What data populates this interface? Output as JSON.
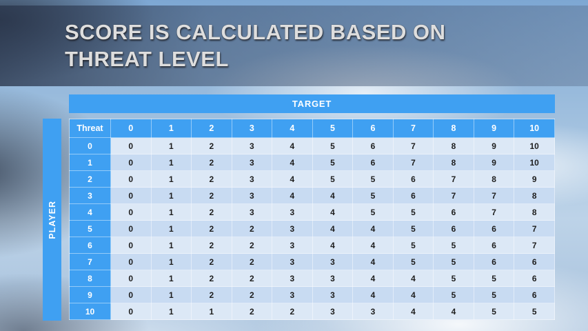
{
  "slide": {
    "title_line1": "SCORE IS CALCULATED BASED ON",
    "title_line2": "THREAT LEVEL"
  },
  "table": {
    "target_label": "TARGET",
    "player_label": "PLAYER",
    "corner_label": "Threat",
    "col_headers": [
      "0",
      "1",
      "2",
      "3",
      "4",
      "5",
      "6",
      "7",
      "8",
      "9",
      "10"
    ],
    "rows": [
      {
        "threat": "0",
        "values": [
          0,
          1,
          2,
          3,
          4,
          5,
          6,
          7,
          8,
          9,
          10
        ]
      },
      {
        "threat": "1",
        "values": [
          0,
          1,
          2,
          3,
          4,
          5,
          6,
          7,
          8,
          9,
          10
        ]
      },
      {
        "threat": "2",
        "values": [
          0,
          1,
          2,
          3,
          4,
          5,
          5,
          6,
          7,
          8,
          9
        ]
      },
      {
        "threat": "3",
        "values": [
          0,
          1,
          2,
          3,
          4,
          4,
          5,
          6,
          7,
          7,
          8
        ]
      },
      {
        "threat": "4",
        "values": [
          0,
          1,
          2,
          3,
          3,
          4,
          5,
          5,
          6,
          7,
          8
        ]
      },
      {
        "threat": "5",
        "values": [
          0,
          1,
          2,
          2,
          3,
          4,
          4,
          5,
          6,
          6,
          7
        ]
      },
      {
        "threat": "6",
        "values": [
          0,
          1,
          2,
          2,
          3,
          4,
          4,
          5,
          5,
          6,
          7
        ]
      },
      {
        "threat": "7",
        "values": [
          0,
          1,
          2,
          2,
          3,
          3,
          4,
          5,
          5,
          6,
          6
        ]
      },
      {
        "threat": "8",
        "values": [
          0,
          1,
          2,
          2,
          3,
          3,
          4,
          4,
          5,
          5,
          6
        ]
      },
      {
        "threat": "9",
        "values": [
          0,
          1,
          2,
          2,
          3,
          3,
          4,
          4,
          5,
          5,
          6
        ]
      },
      {
        "threat": "10",
        "values": [
          0,
          1,
          1,
          2,
          2,
          3,
          3,
          4,
          4,
          5,
          5
        ]
      }
    ]
  },
  "colors": {
    "accent_blue": "#3fa0f2",
    "row_light": "#dce8f6",
    "row_dark": "#c8dbf2"
  }
}
